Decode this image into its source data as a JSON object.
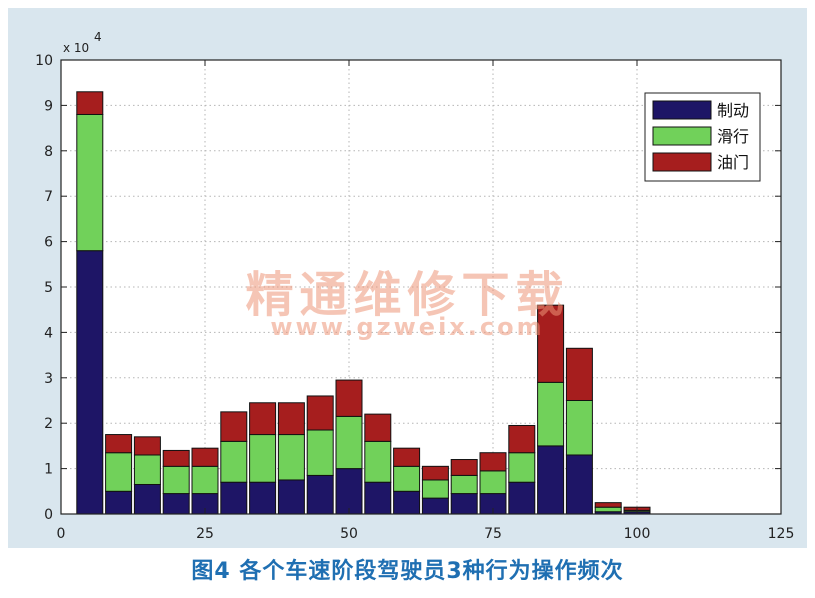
{
  "chart_data": {
    "type": "bar",
    "stacked": true,
    "x_center_values": [
      5,
      10,
      15,
      20,
      25,
      30,
      35,
      40,
      45,
      50,
      55,
      60,
      65,
      70,
      75,
      80,
      85,
      90,
      95,
      100
    ],
    "series": [
      {
        "name": "制动",
        "color": "#1e1566",
        "values": [
          5.8,
          0.5,
          0.65,
          0.45,
          0.45,
          0.7,
          0.7,
          0.75,
          0.85,
          1.0,
          0.7,
          0.5,
          0.35,
          0.45,
          0.45,
          0.7,
          1.5,
          1.3,
          0.05,
          0.05
        ]
      },
      {
        "name": "滑行",
        "color": "#71d15a",
        "values": [
          3.0,
          0.85,
          0.65,
          0.6,
          0.6,
          0.9,
          1.05,
          1.0,
          1.0,
          1.15,
          0.9,
          0.55,
          0.4,
          0.4,
          0.5,
          0.65,
          1.4,
          1.2,
          0.1,
          0.03
        ]
      },
      {
        "name": "油门",
        "color": "#a61e1e",
        "values": [
          0.5,
          0.4,
          0.4,
          0.35,
          0.4,
          0.65,
          0.7,
          0.7,
          0.75,
          0.8,
          0.6,
          0.4,
          0.3,
          0.35,
          0.4,
          0.6,
          1.7,
          1.15,
          0.1,
          0.07
        ]
      }
    ],
    "xlim": [
      0,
      125
    ],
    "ylim": [
      0,
      10
    ],
    "x_ticks": [
      0,
      25,
      50,
      75,
      100,
      125
    ],
    "y_ticks": [
      0,
      1,
      2,
      3,
      4,
      5,
      6,
      7,
      8,
      9,
      10
    ],
    "y_multiplier": "x 10",
    "y_multiplier_exp": "4",
    "grid": true,
    "legend_position": "top-right"
  },
  "caption": "图4   各个车速阶段驾驶员3种行为操作频次",
  "watermark": {
    "line1": "精通维修下载",
    "line2": "www.gzweix.com"
  }
}
